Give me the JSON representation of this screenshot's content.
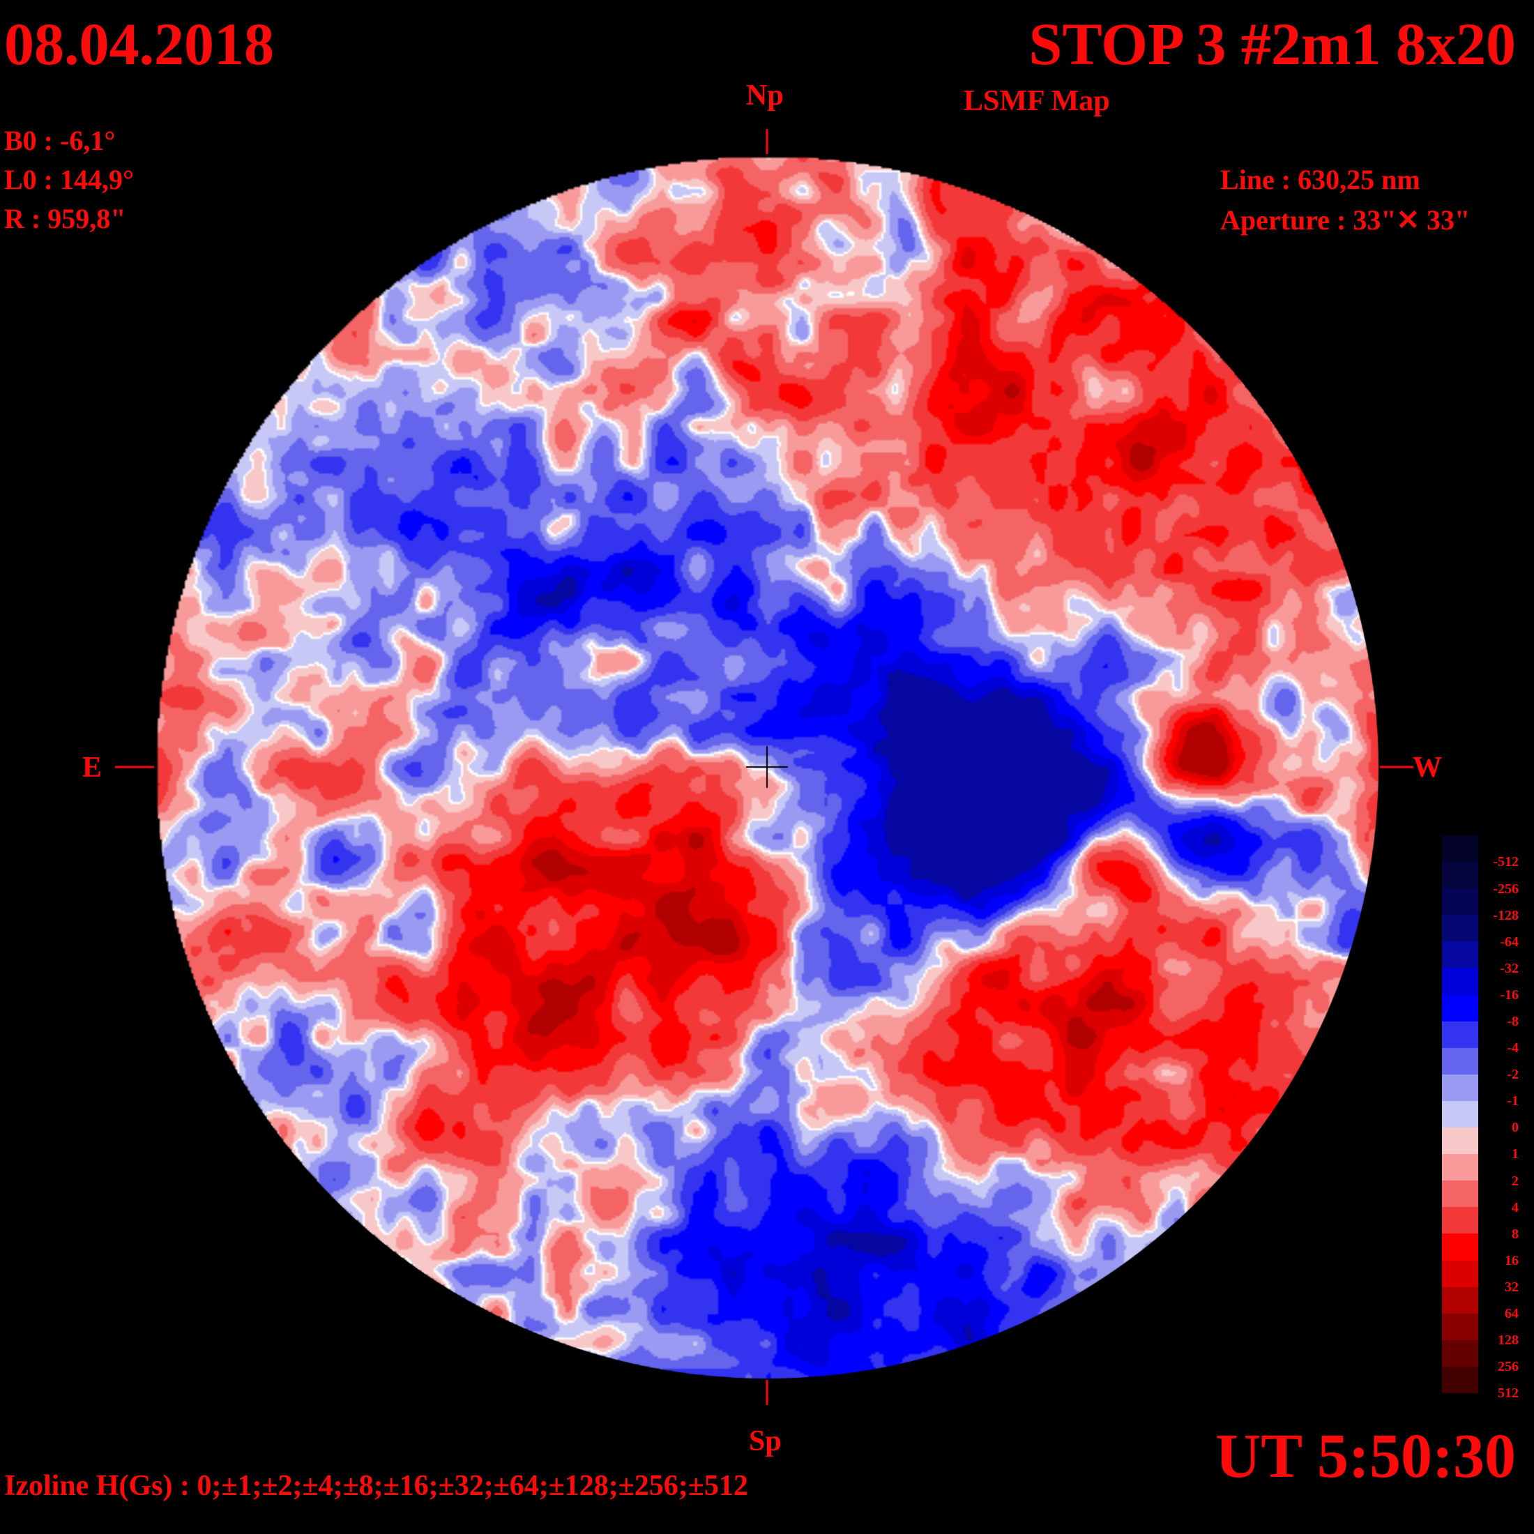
{
  "header": {
    "date": "08.04.2018",
    "title": "STOP 3 #2m1 8x20",
    "subtitle": "LSMF  Map"
  },
  "params": {
    "b0": "B0 : -6,1°",
    "l0": "L0 : 144,9°",
    "r": "R  : 959,8\""
  },
  "instrument": {
    "line": "Line :  630,25 nm",
    "aperture": "Aperture : 33\"✕ 33\""
  },
  "compass": {
    "north": "Np",
    "south": "Sp",
    "east": "E",
    "west": "W"
  },
  "time": "UT 5:50:30",
  "izoline": "Izoline H(Gs) : 0;±1;±2;±4;±8;±16;±32;±64;±128;±256;±512",
  "legend": {
    "labels": [
      "-512",
      "-256",
      "-128",
      "-64",
      "-32",
      "-16",
      "-8",
      "-4",
      "-2",
      "-1",
      "0",
      "1",
      "2",
      "4",
      "8",
      "16",
      "32",
      "64",
      "128",
      "256",
      "512"
    ],
    "colors": [
      "#03032a",
      "#04043e",
      "#050558",
      "#060675",
      "#0606a0",
      "#0000d8",
      "#0000ff",
      "#3333f0",
      "#6464ec",
      "#9a9af2",
      "#c8c8f6",
      "#f8c8c8",
      "#f89a9a",
      "#f46464",
      "#f23838",
      "#ff0000",
      "#dc0000",
      "#b00000",
      "#8a0000",
      "#640000",
      "#420000"
    ]
  },
  "colors": {
    "text": "#ff0a0a",
    "background": "#000000",
    "isoline_zero": "#ffffff"
  }
}
